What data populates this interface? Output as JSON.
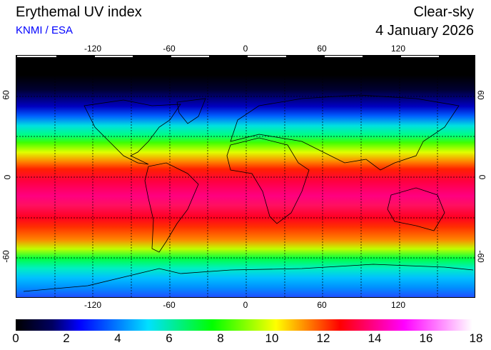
{
  "header": {
    "title": "Erythemal UV index",
    "source": "KNMI / ESA",
    "mode": "Clear-sky",
    "date": "4 January 2026"
  },
  "map": {
    "lon_labels": [
      "-120",
      "-60",
      "0",
      "60",
      "120"
    ],
    "lat_labels": [
      "60",
      "0",
      "-60"
    ]
  },
  "colorbar": {
    "labels": [
      "0",
      "2",
      "4",
      "6",
      "8",
      "10",
      "12",
      "14",
      "16",
      "18"
    ],
    "min": 0,
    "max": 18,
    "colors": [
      "#000000",
      "#0000ff",
      "#00ffff",
      "#00ff00",
      "#ffff00",
      "#ff0000",
      "#ff00ff",
      "#ffffff"
    ]
  }
}
